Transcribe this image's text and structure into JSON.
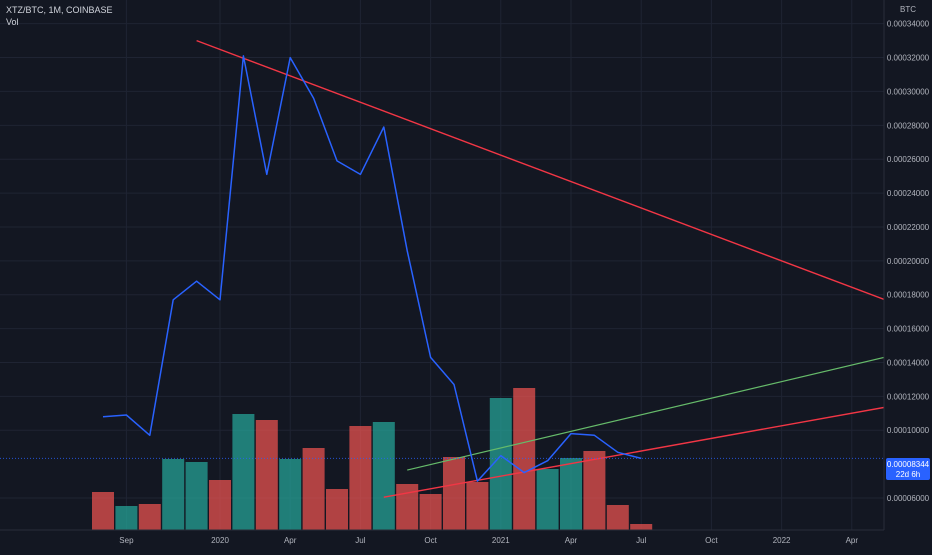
{
  "legend": {
    "symbol_line": "XTZ/BTC, 1M, COINBASE",
    "indicator": "Vol"
  },
  "price_axis": {
    "unit": "BTC",
    "ticks": [
      "0.00034000",
      "0.00032000",
      "0.00030000",
      "0.00028000",
      "0.00026000",
      "0.00024000",
      "0.00022000",
      "0.00020000",
      "0.00018000",
      "0.00016000",
      "0.00014000",
      "0.00012000",
      "0.00010000",
      "0.00006000"
    ],
    "current_price_label": "0.00008344",
    "countdown_label": "22d 6h"
  },
  "time_axis": {
    "labels": [
      "Sep",
      "2020",
      "Apr",
      "Jul",
      "Oct",
      "2021",
      "Apr",
      "Jul",
      "Oct",
      "2022",
      "Apr"
    ]
  },
  "colors": {
    "background": "#131722",
    "grid": "#1f2433",
    "price_line": "#2962ff",
    "vol_up": "#26a69a",
    "vol_down": "#ef5350",
    "trend_red": "#f23645",
    "trend_green": "#66bb6a",
    "trend_orange": "#ff7043",
    "axis_text": "#b2b5be",
    "price_tag": "#2962ff"
  },
  "chart_data": {
    "type": "line",
    "xlabel": "",
    "ylabel": "",
    "ylim": [
      5e-05,
      0.000345
    ],
    "months": [
      "2019-08",
      "2019-09",
      "2019-10",
      "2019-11",
      "2019-12",
      "2020-01",
      "2020-02",
      "2020-03",
      "2020-04",
      "2020-05",
      "2020-06",
      "2020-07",
      "2020-08",
      "2020-09",
      "2020-10",
      "2020-11",
      "2020-12",
      "2021-01",
      "2021-02",
      "2021-03",
      "2021-04",
      "2021-05",
      "2021-06",
      "2021-07"
    ],
    "close": [
      0.000108,
      0.000109,
      9.7e-05,
      0.000177,
      0.000188,
      0.000177,
      0.000321,
      0.000251,
      0.00032,
      0.000296,
      0.000259,
      0.000251,
      0.000279,
      0.000206,
      0.000143,
      0.000127,
      7e-05,
      8.5e-05,
      7.5e-05,
      8.2e-05,
      9.8e-05,
      9.7e-05,
      8.7e-05,
      8.34e-05
    ],
    "volume": [
      38,
      24,
      26,
      71,
      68,
      50,
      116,
      110,
      71,
      82,
      41,
      104,
      108,
      46,
      36,
      73,
      48,
      132,
      142,
      61,
      72,
      79,
      25,
      6
    ],
    "volume_direction": [
      "down",
      "up",
      "down",
      "up",
      "up",
      "down",
      "up",
      "down",
      "up",
      "down",
      "down",
      "down",
      "up",
      "down",
      "down",
      "down",
      "down",
      "up",
      "down",
      "up",
      "up",
      "down",
      "down",
      "down"
    ],
    "trendlines": [
      {
        "color": "red",
        "from": [
          "2019-12",
          0.00033
        ],
        "to": [
          "2022-06",
          0.000174
        ]
      },
      {
        "color": "green",
        "from": [
          "2020-09",
          7.65e-05
        ],
        "to": [
          "2022-06",
          0.000145
        ]
      },
      {
        "color": "red",
        "from": [
          "2020-08",
          6.05e-05
        ],
        "to": [
          "2022-06",
          0.000115
        ]
      }
    ]
  }
}
